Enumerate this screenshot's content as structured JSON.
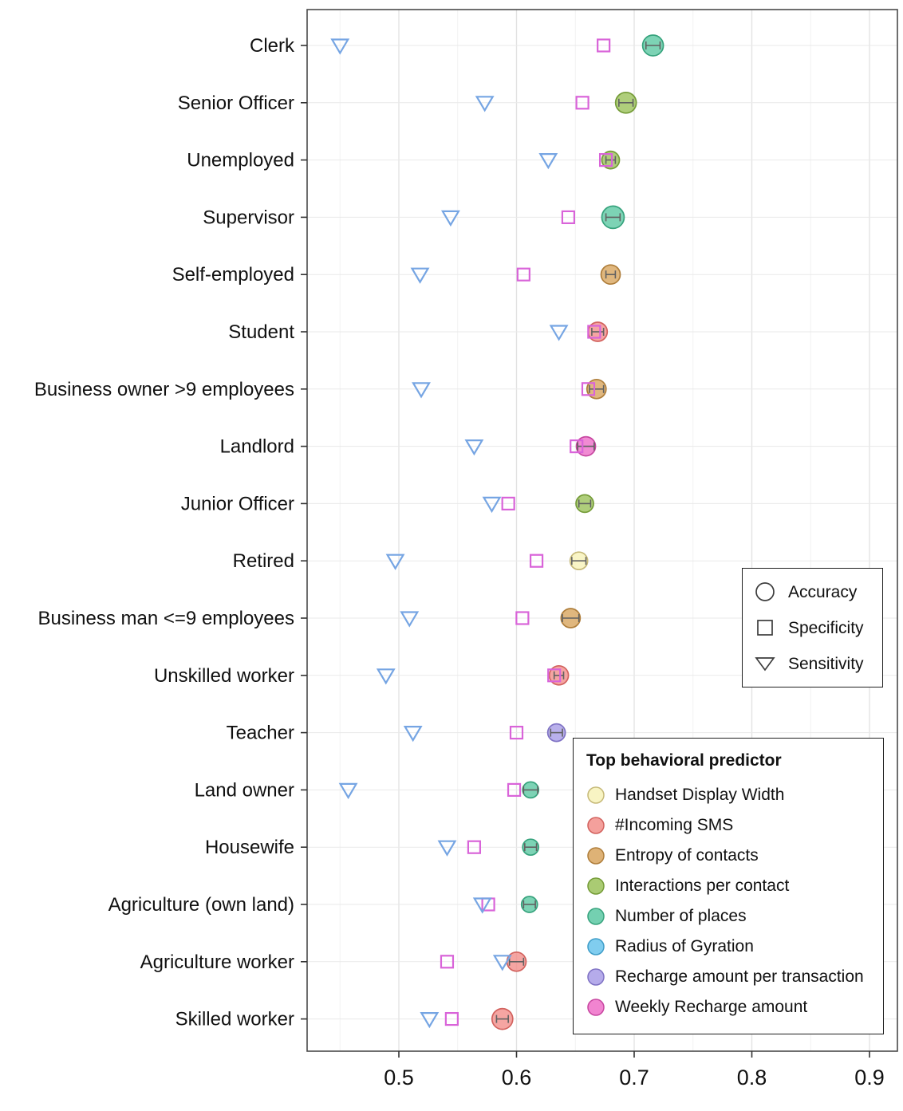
{
  "chart_data": {
    "type": "scatter",
    "title": "",
    "xlabel": "",
    "ylabel": "",
    "x_axis": {
      "tick_values": [
        0.5,
        0.6,
        0.7,
        0.8,
        0.9
      ],
      "range": [
        0.422,
        0.924
      ]
    },
    "shape_legend": {
      "items": [
        {
          "shape": "circle",
          "label": "Accuracy"
        },
        {
          "shape": "square",
          "label": "Specificity"
        },
        {
          "shape": "triangle-down",
          "label": "Sensitivity"
        }
      ]
    },
    "color_legend": {
      "title": "Top behavioral predictor",
      "items": [
        {
          "label": "Handset Display Width",
          "fill": "#F7F2B8",
          "stroke": "#C6B978"
        },
        {
          "label": "#Incoming SMS",
          "fill": "#F28F8B",
          "stroke": "#D2625E"
        },
        {
          "label": "Entropy of contacts",
          "fill": "#D8A55E",
          "stroke": "#AF7E3B"
        },
        {
          "label": "Interactions per contact",
          "fill": "#9BC25A",
          "stroke": "#759C38"
        },
        {
          "label": "Number of places",
          "fill": "#5CC8A3",
          "stroke": "#37A37D"
        },
        {
          "label": "Radius of Gyration",
          "fill": "#6AC4EC",
          "stroke": "#3F9DC8"
        },
        {
          "label": "Recharge amount per transaction",
          "fill": "#A89CE6",
          "stroke": "#7F72C4"
        },
        {
          "label": "Weekly Recharge amount",
          "fill": "#EE6EC8",
          "stroke": "#C746A0"
        }
      ]
    },
    "marker_style": {
      "sensitivity_color": "#76A5E3",
      "specificity_color": "#D964D9",
      "errorbar_color": "#616161"
    },
    "points": [
      {
        "category": "Clerk",
        "sensitivity": 0.45,
        "specificity": 0.674,
        "accuracy": 0.716,
        "accuracy_err": 0.006,
        "predictor": "Number of places",
        "r": 13
      },
      {
        "category": "Senior Officer",
        "sensitivity": 0.573,
        "specificity": 0.656,
        "accuracy": 0.693,
        "accuracy_err": 0.006,
        "predictor": "Interactions per contact",
        "r": 13
      },
      {
        "category": "Unemployed",
        "sensitivity": 0.627,
        "specificity": 0.676,
        "accuracy": 0.68,
        "accuracy_err": 0.004,
        "predictor": "Interactions per contact",
        "r": 11
      },
      {
        "category": "Supervisor",
        "sensitivity": 0.544,
        "specificity": 0.644,
        "accuracy": 0.682,
        "accuracy_err": 0.006,
        "predictor": "Number of places",
        "r": 14
      },
      {
        "category": "Self-employed",
        "sensitivity": 0.518,
        "specificity": 0.606,
        "accuracy": 0.68,
        "accuracy_err": 0.004,
        "predictor": "Entropy of contacts",
        "r": 12
      },
      {
        "category": "Student",
        "sensitivity": 0.636,
        "specificity": 0.666,
        "accuracy": 0.669,
        "accuracy_err": 0.005,
        "predictor": "#Incoming SMS",
        "r": 12
      },
      {
        "category": "Business owner >9 employees",
        "sensitivity": 0.519,
        "specificity": 0.661,
        "accuracy": 0.668,
        "accuracy_err": 0.006,
        "predictor": "Entropy of contacts",
        "r": 12
      },
      {
        "category": "Landlord",
        "sensitivity": 0.564,
        "specificity": 0.651,
        "accuracy": 0.659,
        "accuracy_err": 0.007,
        "predictor": "Weekly Recharge amount",
        "r": 12
      },
      {
        "category": "Junior Officer",
        "sensitivity": 0.579,
        "specificity": 0.593,
        "accuracy": 0.658,
        "accuracy_err": 0.005,
        "predictor": "Interactions per contact",
        "r": 11
      },
      {
        "category": "Retired",
        "sensitivity": 0.497,
        "specificity": 0.617,
        "accuracy": 0.653,
        "accuracy_err": 0.006,
        "predictor": "Handset Display Width",
        "r": 11
      },
      {
        "category": "Business man <=9 employees",
        "sensitivity": 0.509,
        "specificity": 0.605,
        "accuracy": 0.646,
        "accuracy_err": 0.007,
        "predictor": "Entropy of contacts",
        "r": 12
      },
      {
        "category": "Unskilled worker",
        "sensitivity": 0.489,
        "specificity": 0.632,
        "accuracy": 0.636,
        "accuracy_err": 0.004,
        "predictor": "#Incoming SMS",
        "r": 12
      },
      {
        "category": "Teacher",
        "sensitivity": 0.512,
        "specificity": 0.6,
        "accuracy": 0.634,
        "accuracy_err": 0.005,
        "predictor": "Recharge amount per transaction",
        "r": 11
      },
      {
        "category": "Land owner",
        "sensitivity": 0.457,
        "specificity": 0.598,
        "accuracy": 0.612,
        "accuracy_err": 0.006,
        "predictor": "Number of places",
        "r": 10
      },
      {
        "category": "Housewife",
        "sensitivity": 0.541,
        "specificity": 0.564,
        "accuracy": 0.612,
        "accuracy_err": 0.005,
        "predictor": "Number of places",
        "r": 10
      },
      {
        "category": "Agriculture (own land)",
        "sensitivity": 0.571,
        "specificity": 0.576,
        "accuracy": 0.611,
        "accuracy_err": 0.005,
        "predictor": "Number of places",
        "r": 10
      },
      {
        "category": "Agriculture worker",
        "sensitivity": 0.588,
        "specificity": 0.541,
        "accuracy": 0.6,
        "accuracy_err": 0.006,
        "predictor": "#Incoming SMS",
        "r": 12
      },
      {
        "category": "Skilled worker",
        "sensitivity": 0.526,
        "specificity": 0.545,
        "accuracy": 0.588,
        "accuracy_err": 0.005,
        "predictor": "#Incoming SMS",
        "r": 13
      }
    ]
  }
}
